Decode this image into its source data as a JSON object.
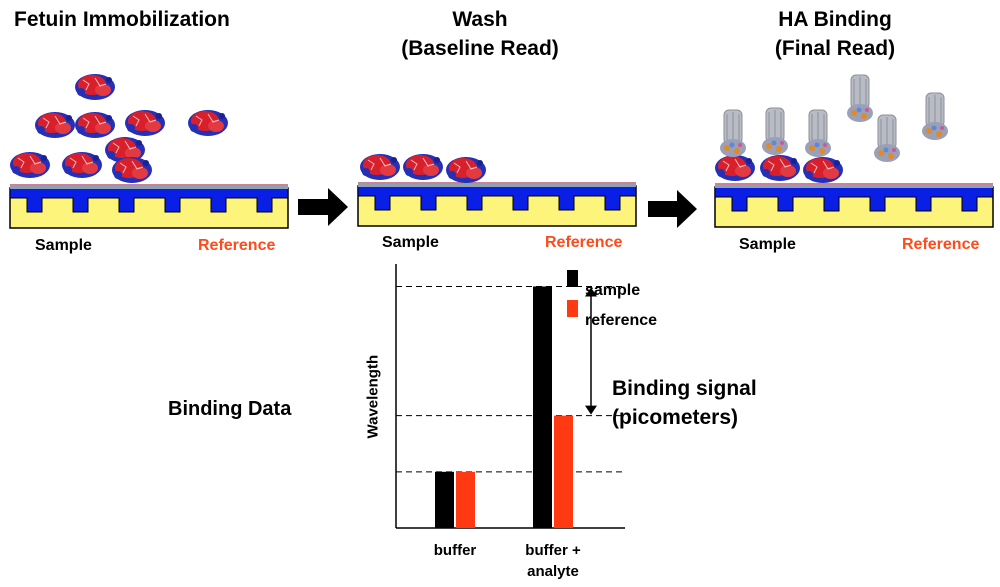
{
  "panels": [
    {
      "title": "Fetuin Immobilization",
      "sample_label": "Sample",
      "reference_label": "Reference"
    },
    {
      "title_line1": "Wash",
      "title_line2": "(Baseline Read)",
      "sample_label": "Sample",
      "reference_label": "Reference"
    },
    {
      "title_line1": "HA Binding",
      "title_line2": "(Final Read)",
      "sample_label": "Sample",
      "reference_label": "Reference"
    }
  ],
  "binding_data_label": "Binding Data",
  "binding_signal_line1": "Binding signal",
  "binding_signal_line2": "(picometers)",
  "colors": {
    "substrate_yellow": "#fdf57b",
    "layer_blue": "#0a1fe6",
    "surface_gray": "#8fa0b0",
    "surface_pink": "#c8829a",
    "protein_red": "#d8202c",
    "protein_blue": "#2530b8",
    "ha_gray": "#b9bcc4",
    "arrow": "#000000",
    "sample_bar": "#000000",
    "reference_bar": "#ff3a12"
  },
  "chart_data": {
    "type": "bar",
    "categories": [
      "buffer",
      "buffer +\nanalyte"
    ],
    "category_line1": [
      "buffer",
      "buffer +"
    ],
    "category_line2": [
      "",
      "analyte"
    ],
    "ylabel": "Wavelength",
    "series": [
      {
        "name": "sample",
        "values": [
          1.0,
          4.3
        ]
      },
      {
        "name": "reference",
        "values": [
          1.0,
          2.0
        ]
      }
    ],
    "reference_lines": [
      1.0,
      2.0,
      4.3
    ],
    "ylim": [
      0,
      4.7
    ],
    "legend_position": "top-right"
  }
}
